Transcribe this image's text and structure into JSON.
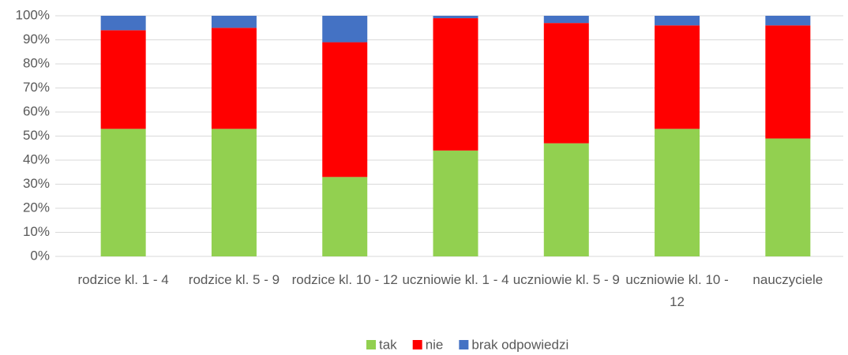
{
  "chart_data": {
    "type": "stacked_bar",
    "categories": [
      "rodzice kl. 1 - 4",
      "rodzice kl. 5 - 9",
      "rodzice kl. 10 - 12",
      "uczniowie kl. 1 - 4",
      "uczniowie kl. 5 - 9",
      "uczniowie kl. 10 - 12",
      "nauczyciele"
    ],
    "series": [
      {
        "name": "tak",
        "color": "#92d050",
        "values": [
          53,
          53,
          33,
          44,
          47,
          53,
          49
        ]
      },
      {
        "name": "nie",
        "color": "#ff0000",
        "values": [
          41,
          42,
          56,
          55,
          50,
          43,
          47
        ]
      },
      {
        "name": "brak odpowiedzi",
        "color": "#4472c4",
        "values": [
          6,
          5,
          11,
          1,
          3,
          4,
          4
        ]
      }
    ],
    "ylim": [
      0,
      100
    ],
    "yticks": [
      {
        "value": 0,
        "label": "0%"
      },
      {
        "value": 10,
        "label": "10%"
      },
      {
        "value": 20,
        "label": "20%"
      },
      {
        "value": 30,
        "label": "30%"
      },
      {
        "value": 40,
        "label": "40%"
      },
      {
        "value": 50,
        "label": "50%"
      },
      {
        "value": 60,
        "label": "60%"
      },
      {
        "value": 70,
        "label": "70%"
      },
      {
        "value": 80,
        "label": "80%"
      },
      {
        "value": 90,
        "label": "90%"
      },
      {
        "value": 100,
        "label": "100%"
      }
    ],
    "grid": true,
    "legend": "bottom"
  }
}
